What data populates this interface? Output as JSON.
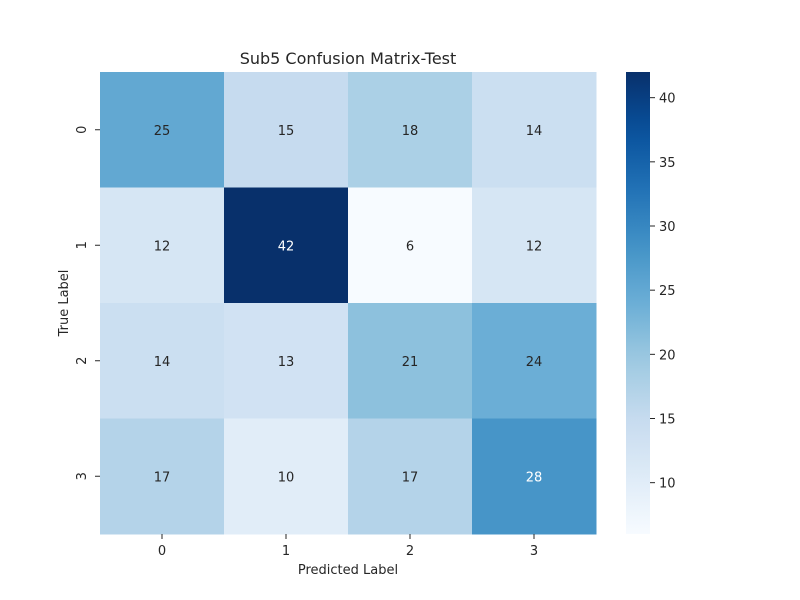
{
  "chart_data": {
    "type": "heatmap",
    "title": "Sub5 Confusion Matrix-Test",
    "xlabel": "Predicted Label",
    "ylabel": "True Label",
    "x_categories": [
      "0",
      "1",
      "2",
      "3"
    ],
    "y_categories": [
      "0",
      "1",
      "2",
      "3"
    ],
    "values": [
      [
        25,
        15,
        18,
        14
      ],
      [
        12,
        42,
        6,
        12
      ],
      [
        14,
        13,
        21,
        24
      ],
      [
        17,
        10,
        17,
        28
      ]
    ],
    "colormap": "Blues",
    "color_range": [
      6,
      42
    ],
    "colorbar_ticks": [
      10,
      15,
      20,
      25,
      30,
      35,
      40
    ],
    "annotations_shown": true,
    "grid": false
  }
}
